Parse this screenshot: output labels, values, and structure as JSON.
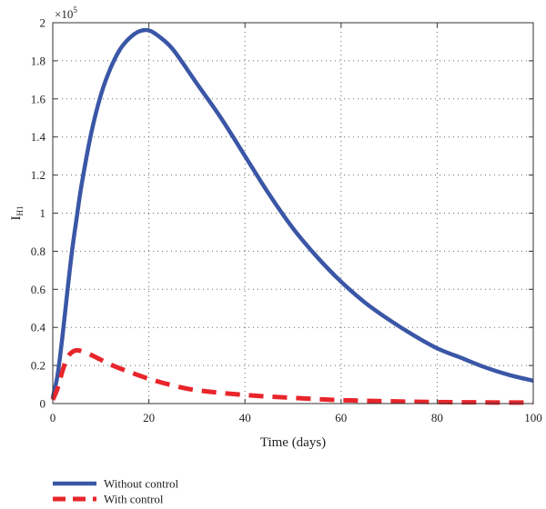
{
  "chart_data": {
    "type": "line",
    "xlabel": "Time (days)",
    "ylabel": "I",
    "ylabel_sub": "H1",
    "exponent_label": "×10",
    "exponent_power": "5",
    "xlim": [
      0,
      100
    ],
    "ylim": [
      0,
      2
    ],
    "x_ticks": [
      0,
      20,
      40,
      60,
      80,
      100
    ],
    "y_ticks": [
      0,
      0.2,
      0.4,
      0.6,
      0.8,
      1,
      1.2,
      1.4,
      1.6,
      1.8,
      2
    ],
    "grid": true,
    "legend_position": "bottom-left, below plot",
    "series": [
      {
        "name": "Without control",
        "color": "#3a56a6",
        "style": "solid",
        "x": [
          0,
          1,
          2,
          3,
          4,
          5,
          6,
          8,
          10,
          12,
          14,
          16,
          18,
          20,
          22,
          25,
          30,
          35,
          40,
          45,
          50,
          55,
          60,
          65,
          70,
          75,
          80,
          85,
          90,
          95,
          100
        ],
        "y": [
          0.03,
          0.15,
          0.35,
          0.58,
          0.8,
          0.98,
          1.15,
          1.42,
          1.62,
          1.76,
          1.86,
          1.92,
          1.955,
          1.96,
          1.93,
          1.86,
          1.68,
          1.5,
          1.3,
          1.1,
          0.92,
          0.77,
          0.64,
          0.53,
          0.44,
          0.36,
          0.29,
          0.24,
          0.19,
          0.15,
          0.12
        ]
      },
      {
        "name": "With control",
        "color": "#e8252b",
        "style": "dashed",
        "x": [
          0,
          1,
          2,
          3,
          4,
          5,
          6,
          8,
          10,
          12,
          15,
          20,
          25,
          30,
          40,
          50,
          60,
          70,
          80,
          90,
          100
        ],
        "y": [
          0.02,
          0.08,
          0.17,
          0.24,
          0.27,
          0.28,
          0.275,
          0.255,
          0.23,
          0.205,
          0.175,
          0.13,
          0.095,
          0.07,
          0.045,
          0.03,
          0.018,
          0.012,
          0.008,
          0.006,
          0.005
        ]
      }
    ]
  }
}
